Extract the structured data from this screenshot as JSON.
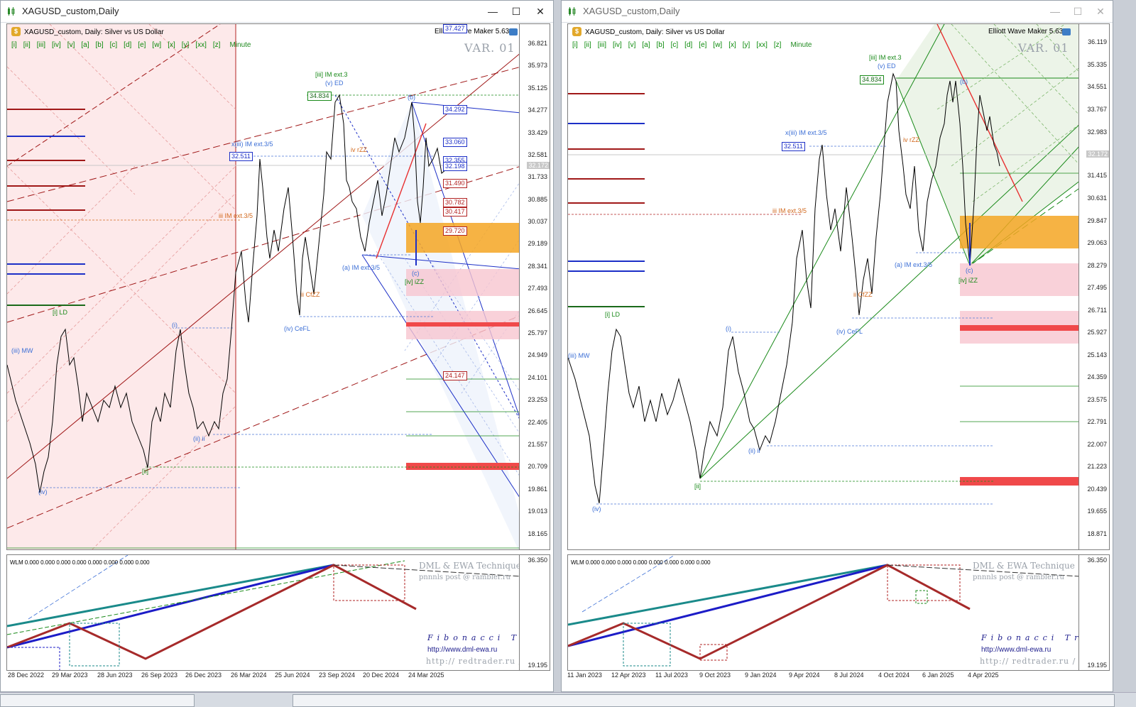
{
  "windows": [
    {
      "title": "XAGUSD_custom,Daily",
      "symbol_line": "XAGUSD_custom, Daily:  Silver vs US Dollar",
      "indicator": "Elliott Wave Maker 5.63",
      "var_label": "VAR. 01",
      "price_labels": [
        "36.821",
        "35.973",
        "35.125",
        "34.277",
        "33.429",
        "32.581",
        "31.733",
        "30.885",
        "30.037",
        "29.189",
        "28.341",
        "27.493",
        "26.645",
        "25.797",
        "24.949",
        "24.101",
        "23.253",
        "22.405",
        "21.557",
        "20.709",
        "19.861",
        "19.013",
        "18.165"
      ],
      "current_price": "32.172",
      "boxed_levels": [
        "37.427",
        "34.292",
        "33.060",
        "32.355",
        "32.198",
        "31.490",
        "30.782",
        "30.417",
        "29.720",
        "24.147",
        "34.834",
        "32.511"
      ],
      "wave_labels": [
        "[iii] IM ext.3",
        "(v) ED",
        "x(iii) IM ext.3/5",
        "iii IM ext.3/5",
        "(iii) MW",
        "[i] LD",
        "(iv) CeFL",
        "(a) IM ext.3/5",
        "[iv] iZZ",
        "iv rZZ",
        "ii CfZZ",
        "(b)",
        "(c)",
        "[ii]",
        "(iv)",
        "(ii) ii",
        "(i)"
      ],
      "dates": [
        "28 Dec 2022",
        "29 Mar 2023",
        "28 Jun 2023",
        "26 Sep 2023",
        "26 Dec 2023",
        "26 Mar 2024",
        "25 Jun 2024",
        "23 Sep 2024",
        "20 Dec 2024",
        "24 Mar 2025"
      ],
      "sub_axis": [
        "36.350",
        "19.195"
      ],
      "wlm_text": "WLM 0.000 0.000 0.000 0.000 0.000 0.000 0.000 0.000",
      "footer": {
        "line1": "DML & EWA Technique",
        "line2": "pnnnls post @ rambler.ru",
        "fib": "Fibonacci Traders Club",
        "url1": "http://www.dml-ewa.ru",
        "url2": "http:// redtrader.ru /"
      }
    },
    {
      "title": "XAGUSD_custom,Daily",
      "symbol_line": "XAGUSD_custom, Daily:  Silver vs US Dollar",
      "indicator": "Elliott Wave Maker 5.63",
      "var_label": "VAR. 01",
      "price_labels": [
        "36.119",
        "35.335",
        "34.551",
        "33.767",
        "32.983",
        "31.415",
        "30.631",
        "29.847",
        "29.063",
        "28.279",
        "27.495",
        "26.711",
        "25.927",
        "25.143",
        "24.359",
        "23.575",
        "22.791",
        "22.007",
        "21.223",
        "20.439",
        "19.655",
        "18.871"
      ],
      "current_price": "32.172",
      "boxed_levels": [
        "34.834",
        "32.511"
      ],
      "wave_labels": [
        "[iii] IM ext.3",
        "(v) ED",
        "x(iii) IM ext.3/5",
        "iii IM ext.3/5",
        "(iii) MW",
        "[i] LD",
        "(iv) CeFL",
        "(a) IM ext.3/5",
        "[iv] iZZ",
        "iv rZZ",
        "ii CfZZ",
        "(b)",
        "(c)",
        "[ii]",
        "(iv)",
        "(ii) ii",
        "(i)"
      ],
      "dates": [
        "11 Jan 2023",
        "12 Apr 2023",
        "11 Jul 2023",
        "9 Oct 2023",
        "9 Jan 2024",
        "9 Apr 2024",
        "8 Jul 2024",
        "4 Oct 2024",
        "6 Jan 2025",
        "4 Apr 2025"
      ],
      "sub_axis": [
        "36.350",
        "19.195"
      ],
      "wlm_text": "WLM 0.000 0.000 0.000 0.000 0.000 0.000 0.000 0.000",
      "footer": {
        "line1": "DML & EWA Technique",
        "line2": "pnnnls post @ rambler.ru",
        "fib": "Fibonacci Traders Club",
        "url1": "http://www.dml-ewa.ru",
        "url2": "http:// redtrader.ru /"
      }
    }
  ],
  "toolbar_buttons": [
    "[i]",
    "[ii]",
    "[iii]",
    "[iv]",
    "[v]",
    "[a]",
    "[b]",
    "[c]",
    "[d]",
    "[e]",
    "[w]",
    "[x]",
    "[y]",
    "[xx]",
    "[z]",
    "Minute"
  ],
  "colors": {
    "up_line": "#1a6a1a",
    "bear_line": "#b22222",
    "blue_line": "#1c2fc7",
    "orange_zone": "#f5a623",
    "pink_zone": "#f7c6cf",
    "red_zone": "#f0494a"
  }
}
